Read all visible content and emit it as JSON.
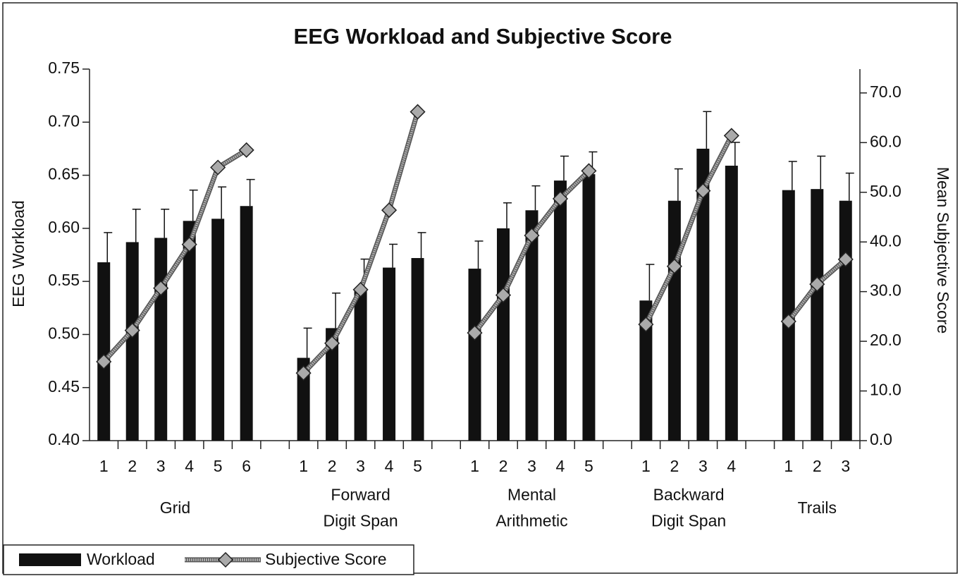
{
  "chart_data": {
    "type": "bar_line",
    "title": "EEG Workload and Subjective Score",
    "ylabel": "EEG Workload",
    "y2label": "Mean Subjective Score",
    "categories": [
      "1",
      "2",
      "3",
      "4",
      "5",
      "6",
      null,
      "1",
      "2",
      "3",
      "4",
      "5",
      null,
      "1",
      "2",
      "3",
      "4",
      "5",
      null,
      "1",
      "2",
      "3",
      "4",
      null,
      "1",
      "2",
      "3"
    ],
    "groups": [
      {
        "lines": [
          "Grid"
        ],
        "start": 0,
        "end": 5
      },
      {
        "lines": [
          "Forward",
          "Digit Span"
        ],
        "start": 7,
        "end": 11
      },
      {
        "lines": [
          "Mental",
          "Arithmetic"
        ],
        "start": 13,
        "end": 17
      },
      {
        "lines": [
          "Backward",
          "Digit Span"
        ],
        "start": 19,
        "end": 22
      },
      {
        "lines": [
          "Trails"
        ],
        "start": 24,
        "end": 26
      }
    ],
    "series": [
      {
        "name": "Workload",
        "color": "#111111",
        "axis": "y",
        "values": [
          0.568,
          0.587,
          0.591,
          0.607,
          0.609,
          0.621,
          null,
          0.478,
          0.506,
          0.543,
          0.563,
          0.572,
          null,
          0.562,
          0.6,
          0.617,
          0.645,
          0.651,
          null,
          0.532,
          0.626,
          0.675,
          0.659,
          null,
          0.636,
          0.637,
          0.626
        ],
        "errors": [
          0.028,
          0.031,
          0.027,
          0.029,
          0.03,
          0.025,
          null,
          0.028,
          0.033,
          0.028,
          0.022,
          0.024,
          null,
          0.026,
          0.024,
          0.023,
          0.023,
          0.021,
          null,
          0.034,
          0.03,
          0.035,
          0.022,
          null,
          0.027,
          0.031,
          0.026
        ]
      },
      {
        "name": "Subjective Score",
        "color": "#aaaaaa",
        "axis": "y2",
        "values": [
          15.9,
          22.2,
          30.7,
          39.5,
          55.0,
          58.5,
          null,
          13.6,
          19.6,
          30.4,
          46.4,
          66.2,
          null,
          21.7,
          29.3,
          41.3,
          48.7,
          54.3,
          null,
          23.4,
          35.1,
          50.3,
          61.4,
          null,
          24.0,
          31.5,
          36.5
        ]
      }
    ],
    "ylim": [
      0.4,
      0.75
    ],
    "yticks": [
      {
        "value": 0.4,
        "label": "0.40"
      },
      0.45,
      {
        "value": 0.5,
        "label": "0.50"
      },
      0.55,
      {
        "value": 0.6,
        "label": "0.60"
      },
      0.65,
      {
        "value": 0.7,
        "label": "0.70"
      },
      0.75
    ],
    "y2lim": [
      0,
      74.8
    ],
    "y2ticks": [
      {
        "value": 0,
        "label": "0.0"
      },
      {
        "value": 10,
        "label": "10.0"
      },
      {
        "value": 20,
        "label": "20.0"
      },
      {
        "value": 30,
        "label": "30.0"
      },
      {
        "value": 40,
        "label": "40.0"
      },
      {
        "value": 50,
        "label": "50.0"
      },
      {
        "value": 60,
        "label": "60.0"
      },
      {
        "value": 70,
        "label": "70.0"
      }
    ]
  }
}
